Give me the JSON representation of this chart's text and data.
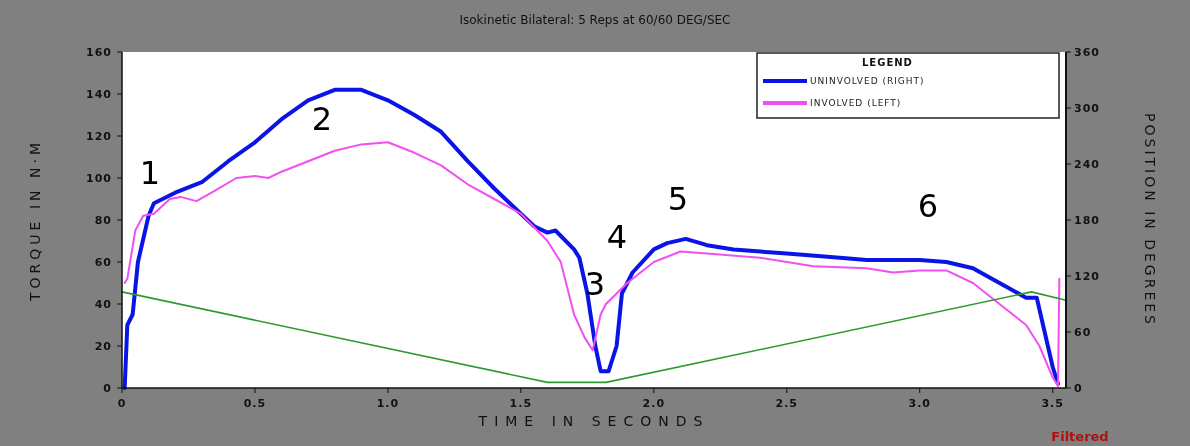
{
  "chart_data": {
    "type": "line",
    "title": "Isokinetic Bilateral: 5 Reps  at 60/60 DEG/SEC",
    "xlabel": "TIME IN SECONDS",
    "ylabel": "TORQUE IN N·M",
    "y2label": "POSITION IN DEGREES",
    "legend_title": "LEGEND",
    "legend": "top right",
    "grid": false,
    "xlim": [
      0,
      3.55
    ],
    "xticks": [
      0,
      0.5,
      {
        "value": 1,
        "label": "1.0"
      },
      1.5,
      {
        "value": 2,
        "label": "2.0"
      },
      2.5,
      {
        "value": 3,
        "label": "3.0"
      },
      3.5
    ],
    "ylim": [
      0,
      160
    ],
    "yticks": [
      0,
      20,
      40,
      60,
      80,
      100,
      120,
      140,
      160
    ],
    "y2lim": [
      0,
      360
    ],
    "y2ticks": [
      0,
      60,
      120,
      180,
      240,
      300,
      360
    ],
    "series": [
      {
        "name": "UNINVOLVED (RIGHT)",
        "color": "#0a14e6",
        "x": [
          0.01,
          0.02,
          0.04,
          0.06,
          0.1,
          0.12,
          0.2,
          0.3,
          0.4,
          0.5,
          0.6,
          0.7,
          0.8,
          0.9,
          1.0,
          1.1,
          1.2,
          1.3,
          1.4,
          1.5,
          1.55,
          1.6,
          1.63,
          1.7,
          1.72,
          1.75,
          1.78,
          1.8,
          1.83,
          1.86,
          1.88,
          1.92,
          2.0,
          2.05,
          2.12,
          2.2,
          2.3,
          2.5,
          2.7,
          2.8,
          3.0,
          3.1,
          3.2,
          3.3,
          3.4,
          3.44,
          3.5,
          3.52
        ],
        "values": [
          0,
          30,
          35,
          60,
          82,
          88,
          93,
          98,
          108,
          117,
          128,
          137,
          142,
          142,
          137,
          130,
          122,
          108,
          95,
          83,
          77,
          74,
          75,
          66,
          62,
          45,
          20,
          8,
          8,
          20,
          45,
          55,
          66,
          69,
          71,
          68,
          66,
          64,
          62,
          61,
          61,
          60,
          57,
          50,
          43,
          43,
          10,
          2
        ]
      },
      {
        "name": "INVOLVED (LEFT)",
        "color": "#f050f0",
        "x": [
          0.01,
          0.02,
          0.05,
          0.08,
          0.12,
          0.18,
          0.22,
          0.28,
          0.35,
          0.43,
          0.5,
          0.55,
          0.6,
          0.7,
          0.8,
          0.9,
          1.0,
          1.1,
          1.2,
          1.3,
          1.4,
          1.5,
          1.6,
          1.65,
          1.7,
          1.74,
          1.77,
          1.8,
          1.82,
          1.9,
          2.0,
          2.1,
          2.2,
          2.4,
          2.6,
          2.8,
          2.9,
          3.0,
          3.1,
          3.2,
          3.3,
          3.4,
          3.45,
          3.5,
          3.52,
          3.525
        ],
        "values": [
          50,
          52,
          75,
          82,
          83,
          90,
          91,
          89,
          94,
          100,
          101,
          100,
          103,
          108,
          113,
          116,
          117,
          112,
          106,
          97,
          90,
          83,
          70,
          60,
          35,
          24,
          18,
          35,
          40,
          50,
          60,
          65,
          64,
          62,
          58,
          57,
          55,
          56,
          56,
          50,
          40,
          30,
          20,
          5,
          1,
          52
        ]
      },
      {
        "color": "#2e9a2e",
        "axis": "y2",
        "x": [
          0,
          1.6,
          1.82,
          3.42,
          3.55
        ],
        "values": [
          103,
          6,
          6,
          103,
          94
        ]
      }
    ],
    "annotations": [
      "1",
      "2",
      "3",
      "4",
      "5",
      "6",
      "Filtered"
    ]
  }
}
